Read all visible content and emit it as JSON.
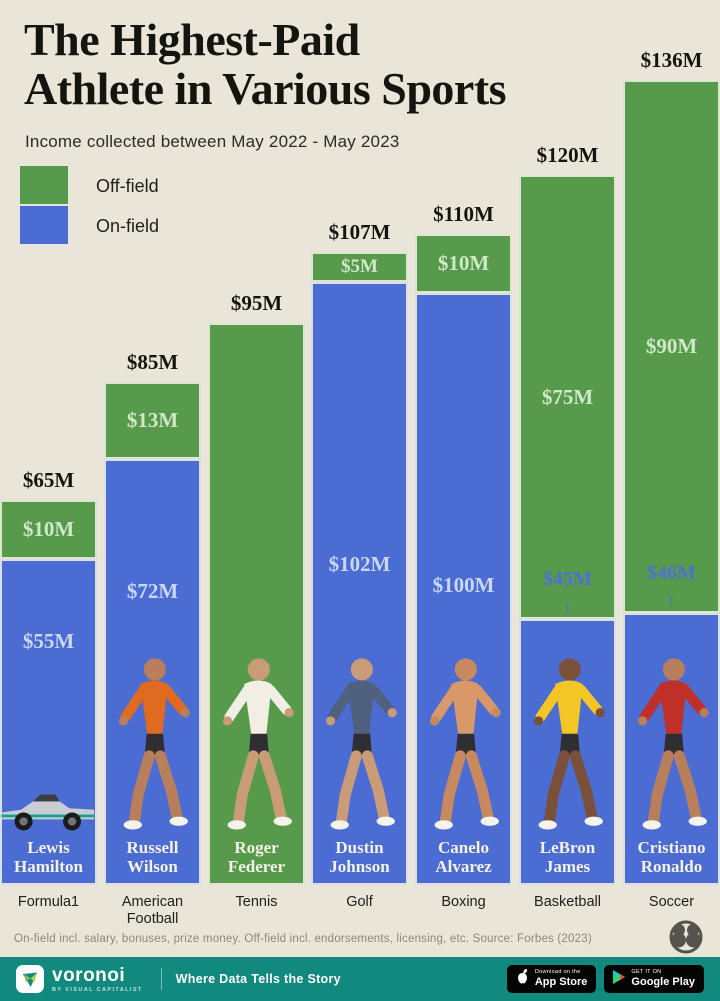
{
  "title": {
    "line1": "The Highest-Paid",
    "line2": "Athlete in Various Sports"
  },
  "subtitle": "Income collected between May 2022 - May 2023",
  "legend": {
    "off_label": "Off-field",
    "on_label": "On-field"
  },
  "colors": {
    "background": "#e9e5d8",
    "off_field_green": "#579a4c",
    "on_field_blue": "#4a6cd3",
    "pale_green_text": "#cfe9c8",
    "pale_blue_text": "#cad8f4",
    "arrow_blue_text": "#4d6fd6",
    "footer_teal": "#12897e",
    "title_black": "#15150f",
    "footnote_gray": "#8b887c"
  },
  "chart_data": {
    "type": "bar",
    "stacked": true,
    "unit": "million USD",
    "title": "The Highest-Paid Athlete in Various Sports",
    "legend_position": "top-left",
    "grid": false,
    "ylim": [
      0,
      136
    ],
    "categories": [
      "Formula1",
      "American Football",
      "Tennis",
      "Golf",
      "Boxing",
      "Basketball",
      "Soccer"
    ],
    "series": [
      {
        "name": "Off-field",
        "values": [
          10,
          13,
          95,
          5,
          10,
          75,
          90
        ]
      },
      {
        "name": "On-field",
        "values": [
          55,
          72,
          0,
          102,
          100,
          45,
          46
        ]
      }
    ],
    "totals": [
      65,
      85,
      95,
      107,
      110,
      120,
      136
    ],
    "athletes": [
      {
        "name": "Lewis Hamilton",
        "sport": "Formula1",
        "total": 65,
        "total_label": "$65M",
        "off": 10,
        "off_label": "$10M",
        "on": 55,
        "on_label": "$55M",
        "on_label_offset": 70,
        "arrow_label": false,
        "figure": "car",
        "figure_color": "#c9cdd2",
        "skin": "#c99b77"
      },
      {
        "name": "Russell Wilson",
        "sport": "American Football",
        "total": 85,
        "total_label": "$85M",
        "off": 13,
        "off_label": "$13M",
        "on": 72,
        "on_label": "$72M",
        "on_label_offset": 120,
        "arrow_label": false,
        "figure": "person",
        "figure_color": "#e06a1f",
        "skin": "#b97f5c"
      },
      {
        "name": "Roger Federer",
        "sport": "Tennis",
        "total": 95,
        "total_label": "$95M",
        "off": 95,
        "off_label": "",
        "on": 0,
        "on_label": "",
        "on_label_offset": 0,
        "arrow_label": false,
        "figure": "person",
        "figure_color": "#f1eee3",
        "skin": "#c99b77"
      },
      {
        "name": "Dustin Johnson",
        "sport": "Golf",
        "total": 107,
        "total_label": "$107M",
        "off": 5,
        "off_label": "$5M",
        "on": 102,
        "on_label": "$102M",
        "on_label_offset": 270,
        "arrow_label": false,
        "figure": "person",
        "figure_color": "#50617f",
        "skin": "#c99b77"
      },
      {
        "name": "Canelo Alvarez",
        "sport": "Boxing",
        "total": 110,
        "total_label": "$110M",
        "off": 10,
        "off_label": "$10M",
        "on": 100,
        "on_label": "$100M",
        "on_label_offset": 280,
        "arrow_label": false,
        "figure": "person",
        "figure_color": "#d9986a",
        "skin": "#c9895f"
      },
      {
        "name": "LeBron James",
        "sport": "Basketball",
        "total": 120,
        "total_label": "$120M",
        "off": 75,
        "off_label": "$75M",
        "on": 45,
        "on_label": "$45M",
        "on_label_offset": 0,
        "arrow_label": true,
        "figure": "person",
        "figure_color": "#f3c525",
        "skin": "#7a5138"
      },
      {
        "name": "Cristiano Ronaldo",
        "sport": "Soccer",
        "total": 136,
        "total_label": "$136M",
        "off": 90,
        "off_label": "$90M",
        "on": 46,
        "on_label": "$46M",
        "on_label_offset": 0,
        "arrow_label": true,
        "figure": "person",
        "figure_color": "#c03028",
        "skin": "#b97f5c"
      }
    ]
  },
  "footnote": {
    "text": "On-field incl. salary, bonuses, prize money. Off-field incl. endorsements, licensing, etc. Source: Forbes (2023)"
  },
  "footer": {
    "brand": "voronoi",
    "brand_sub": "BY VISUAL CAPITALIST",
    "tagline": "Where Data Tells the Story",
    "appstore": {
      "line1": "Download on the",
      "line2": "App Store"
    },
    "gplay": {
      "line1": "GET IT ON",
      "line2": "Google Play"
    }
  }
}
